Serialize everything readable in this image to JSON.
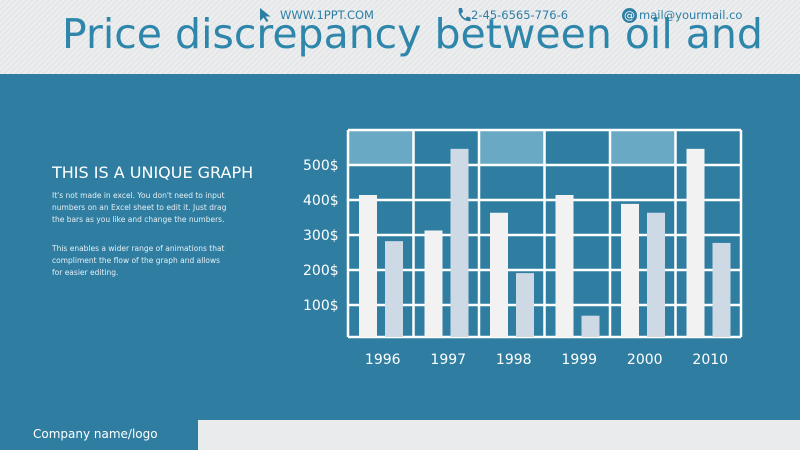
{
  "slide": {
    "title": "Price discrepancy between oil and",
    "subheading": "THIS IS A UNIQUE GRAPH",
    "paragraph1": "It's not made in excel. You don't need to input numbers on an Excel sheet to edit it. Just drag the bars as you like and change the numbers.",
    "paragraph2": "This enables a wider range of animations that compliment the flow of the graph and allows for easier editing."
  },
  "footer": {
    "company": "Company name/logo",
    "website": "WWW.1PPT.COM",
    "phone": "2-45-6565-776-6",
    "email": "mail@yourmail.co",
    "website_icon": "cursor-arrow-icon",
    "phone_icon": "phone-icon",
    "email_icon": "at-icon"
  },
  "colors": {
    "background": "#2f7ea1",
    "title": "#2e86ab",
    "bar_primary": "#f2f2f2",
    "bar_secondary": "#cdd9e5",
    "highlight_cell": "#6aa9c4",
    "grid": "#ffffff"
  },
  "chart_data": {
    "type": "bar",
    "categories": [
      "1996",
      "1997",
      "1998",
      "1999",
      "2000",
      "2010"
    ],
    "series": [
      {
        "values": [
          400,
          300,
          350,
          400,
          375,
          530
        ]
      },
      {
        "values": [
          270,
          530,
          180,
          60,
          350,
          265
        ]
      }
    ],
    "y_ticks": [
      "100$",
      "200$",
      "300$",
      "400$",
      "500$"
    ],
    "ylim": [
      0,
      600
    ],
    "grid": true,
    "title": "",
    "xlabel": "",
    "ylabel": ""
  }
}
